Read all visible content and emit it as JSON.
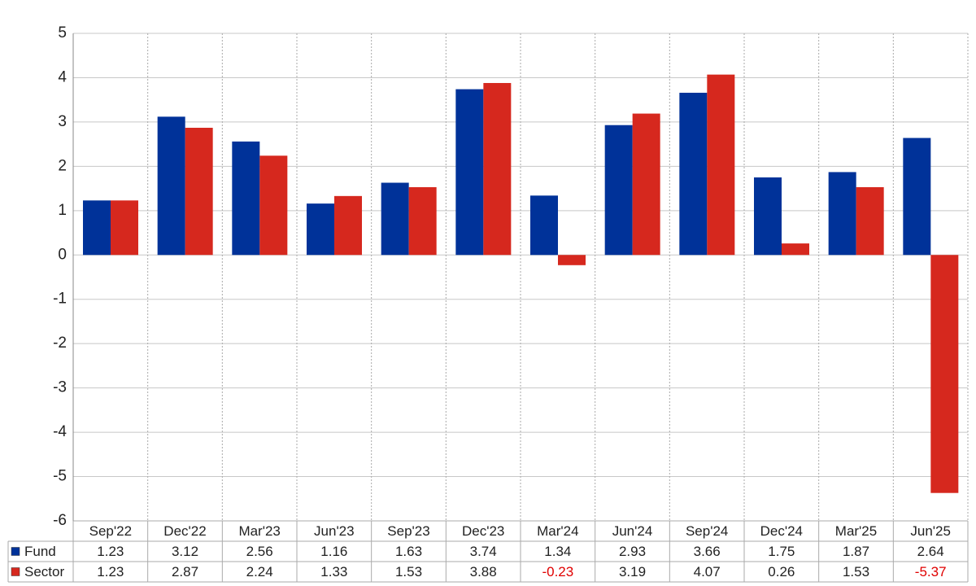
{
  "chart_data": {
    "type": "bar",
    "categories": [
      "Sep'22",
      "Dec'22",
      "Mar'23",
      "Jun'23",
      "Sep'23",
      "Dec'23",
      "Mar'24",
      "Jun'24",
      "Sep'24",
      "Dec'24",
      "Mar'25",
      "Jun'25"
    ],
    "series": [
      {
        "name": "Fund",
        "color": "#003299",
        "values": [
          1.23,
          3.12,
          2.56,
          1.16,
          1.63,
          3.74,
          1.34,
          2.93,
          3.66,
          1.75,
          1.87,
          2.64
        ]
      },
      {
        "name": "Sector",
        "color": "#d6281e",
        "values": [
          1.23,
          2.87,
          2.24,
          1.33,
          1.53,
          3.88,
          -0.23,
          3.19,
          4.07,
          0.26,
          1.53,
          -5.37
        ]
      }
    ],
    "ylim": [
      -6,
      5
    ],
    "yticks": [
      -6,
      -5,
      -4,
      -3,
      -2,
      -1,
      0,
      1,
      2,
      3,
      4,
      5
    ],
    "grid": true
  }
}
